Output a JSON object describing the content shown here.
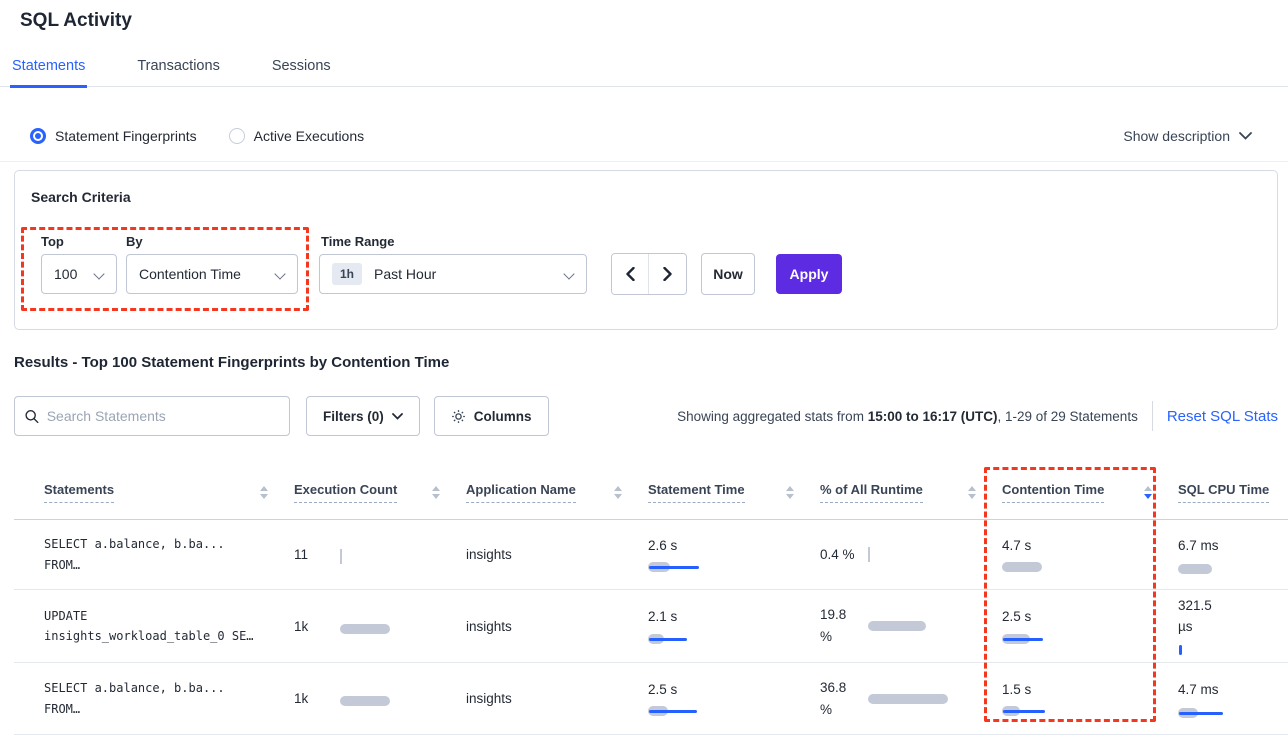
{
  "title": "SQL Activity",
  "tabs": [
    {
      "label": "Statements"
    },
    {
      "label": "Transactions"
    },
    {
      "label": "Sessions"
    }
  ],
  "view_toggle": {
    "options": [
      {
        "label": "Statement Fingerprints",
        "selected": true
      },
      {
        "label": "Active Executions",
        "selected": false
      }
    ],
    "show_description": "Show description"
  },
  "search_criteria": {
    "heading": "Search Criteria",
    "top_label": "Top",
    "top_value": "100",
    "by_label": "By",
    "by_value": "Contention Time",
    "time_range_label": "Time Range",
    "time_badge": "1h",
    "time_value": "Past Hour",
    "now_label": "Now",
    "apply_label": "Apply"
  },
  "results": {
    "heading": "Results - Top 100 Statement Fingerprints by Contention Time",
    "search_placeholder": "Search Statements",
    "filters_label": "Filters (0)",
    "columns_label": "Columns",
    "showing_prefix": "Showing aggregated stats from ",
    "showing_range": "15:00 to 16:17 (UTC)",
    "showing_suffix": ", 1-29 of 29 Statements",
    "reset_label": "Reset SQL Stats"
  },
  "table": {
    "headers": [
      {
        "label": "Statements"
      },
      {
        "label": "Execution Count"
      },
      {
        "label": "Application Name"
      },
      {
        "label": "Statement Time"
      },
      {
        "label": "% of All Runtime"
      },
      {
        "label": "Contention Time",
        "sorted": "desc"
      },
      {
        "label": "SQL CPU Time"
      }
    ],
    "rows": [
      {
        "stmt_line1": "SELECT a.balance, b.ba...",
        "stmt_line2": "FROM…",
        "exec_count": "11",
        "exec_bar": 2,
        "app_name": "insights",
        "stmt_time": {
          "value": "2.6 s",
          "gray": 22,
          "blue": 50
        },
        "runtime": {
          "value": "0.4 %",
          "gray": 2,
          "blue": 0
        },
        "contention": {
          "value": "4.7 s",
          "gray": 40,
          "blue": 0
        },
        "cpu": {
          "value": "6.7 ms",
          "gray": 34,
          "blue": 0
        }
      },
      {
        "stmt_line1": "UPDATE",
        "stmt_line2": "insights_workload_table_0 SE…",
        "exec_count": "1k",
        "exec_bar": 50,
        "app_name": "insights",
        "stmt_time": {
          "value": "2.1 s",
          "gray": 16,
          "blue": 38
        },
        "runtime": {
          "value": "19.8 %",
          "gray": 58,
          "blue": 0
        },
        "contention": {
          "value": "2.5 s",
          "gray": 28,
          "blue": 40
        },
        "cpu": {
          "value": "321.5 µs",
          "gray": 0,
          "blue": 3
        }
      },
      {
        "stmt_line1": "SELECT a.balance, b.ba...",
        "stmt_line2": "FROM…",
        "exec_count": "1k",
        "exec_bar": 50,
        "app_name": "insights",
        "stmt_time": {
          "value": "2.5 s",
          "gray": 20,
          "blue": 48
        },
        "runtime": {
          "value": "36.8 %",
          "gray": 80,
          "blue": 0
        },
        "contention": {
          "value": "1.5 s",
          "gray": 18,
          "blue": 42
        },
        "cpu": {
          "value": "4.7 ms",
          "gray": 20,
          "blue": 44
        }
      }
    ]
  },
  "colors": {
    "accent_blue": "#2962ff",
    "apply_purple": "#5c2be2",
    "annotation_red": "#f4381f",
    "bar_gray": "#c3c9d6",
    "bar_blue": "#2661ff"
  }
}
